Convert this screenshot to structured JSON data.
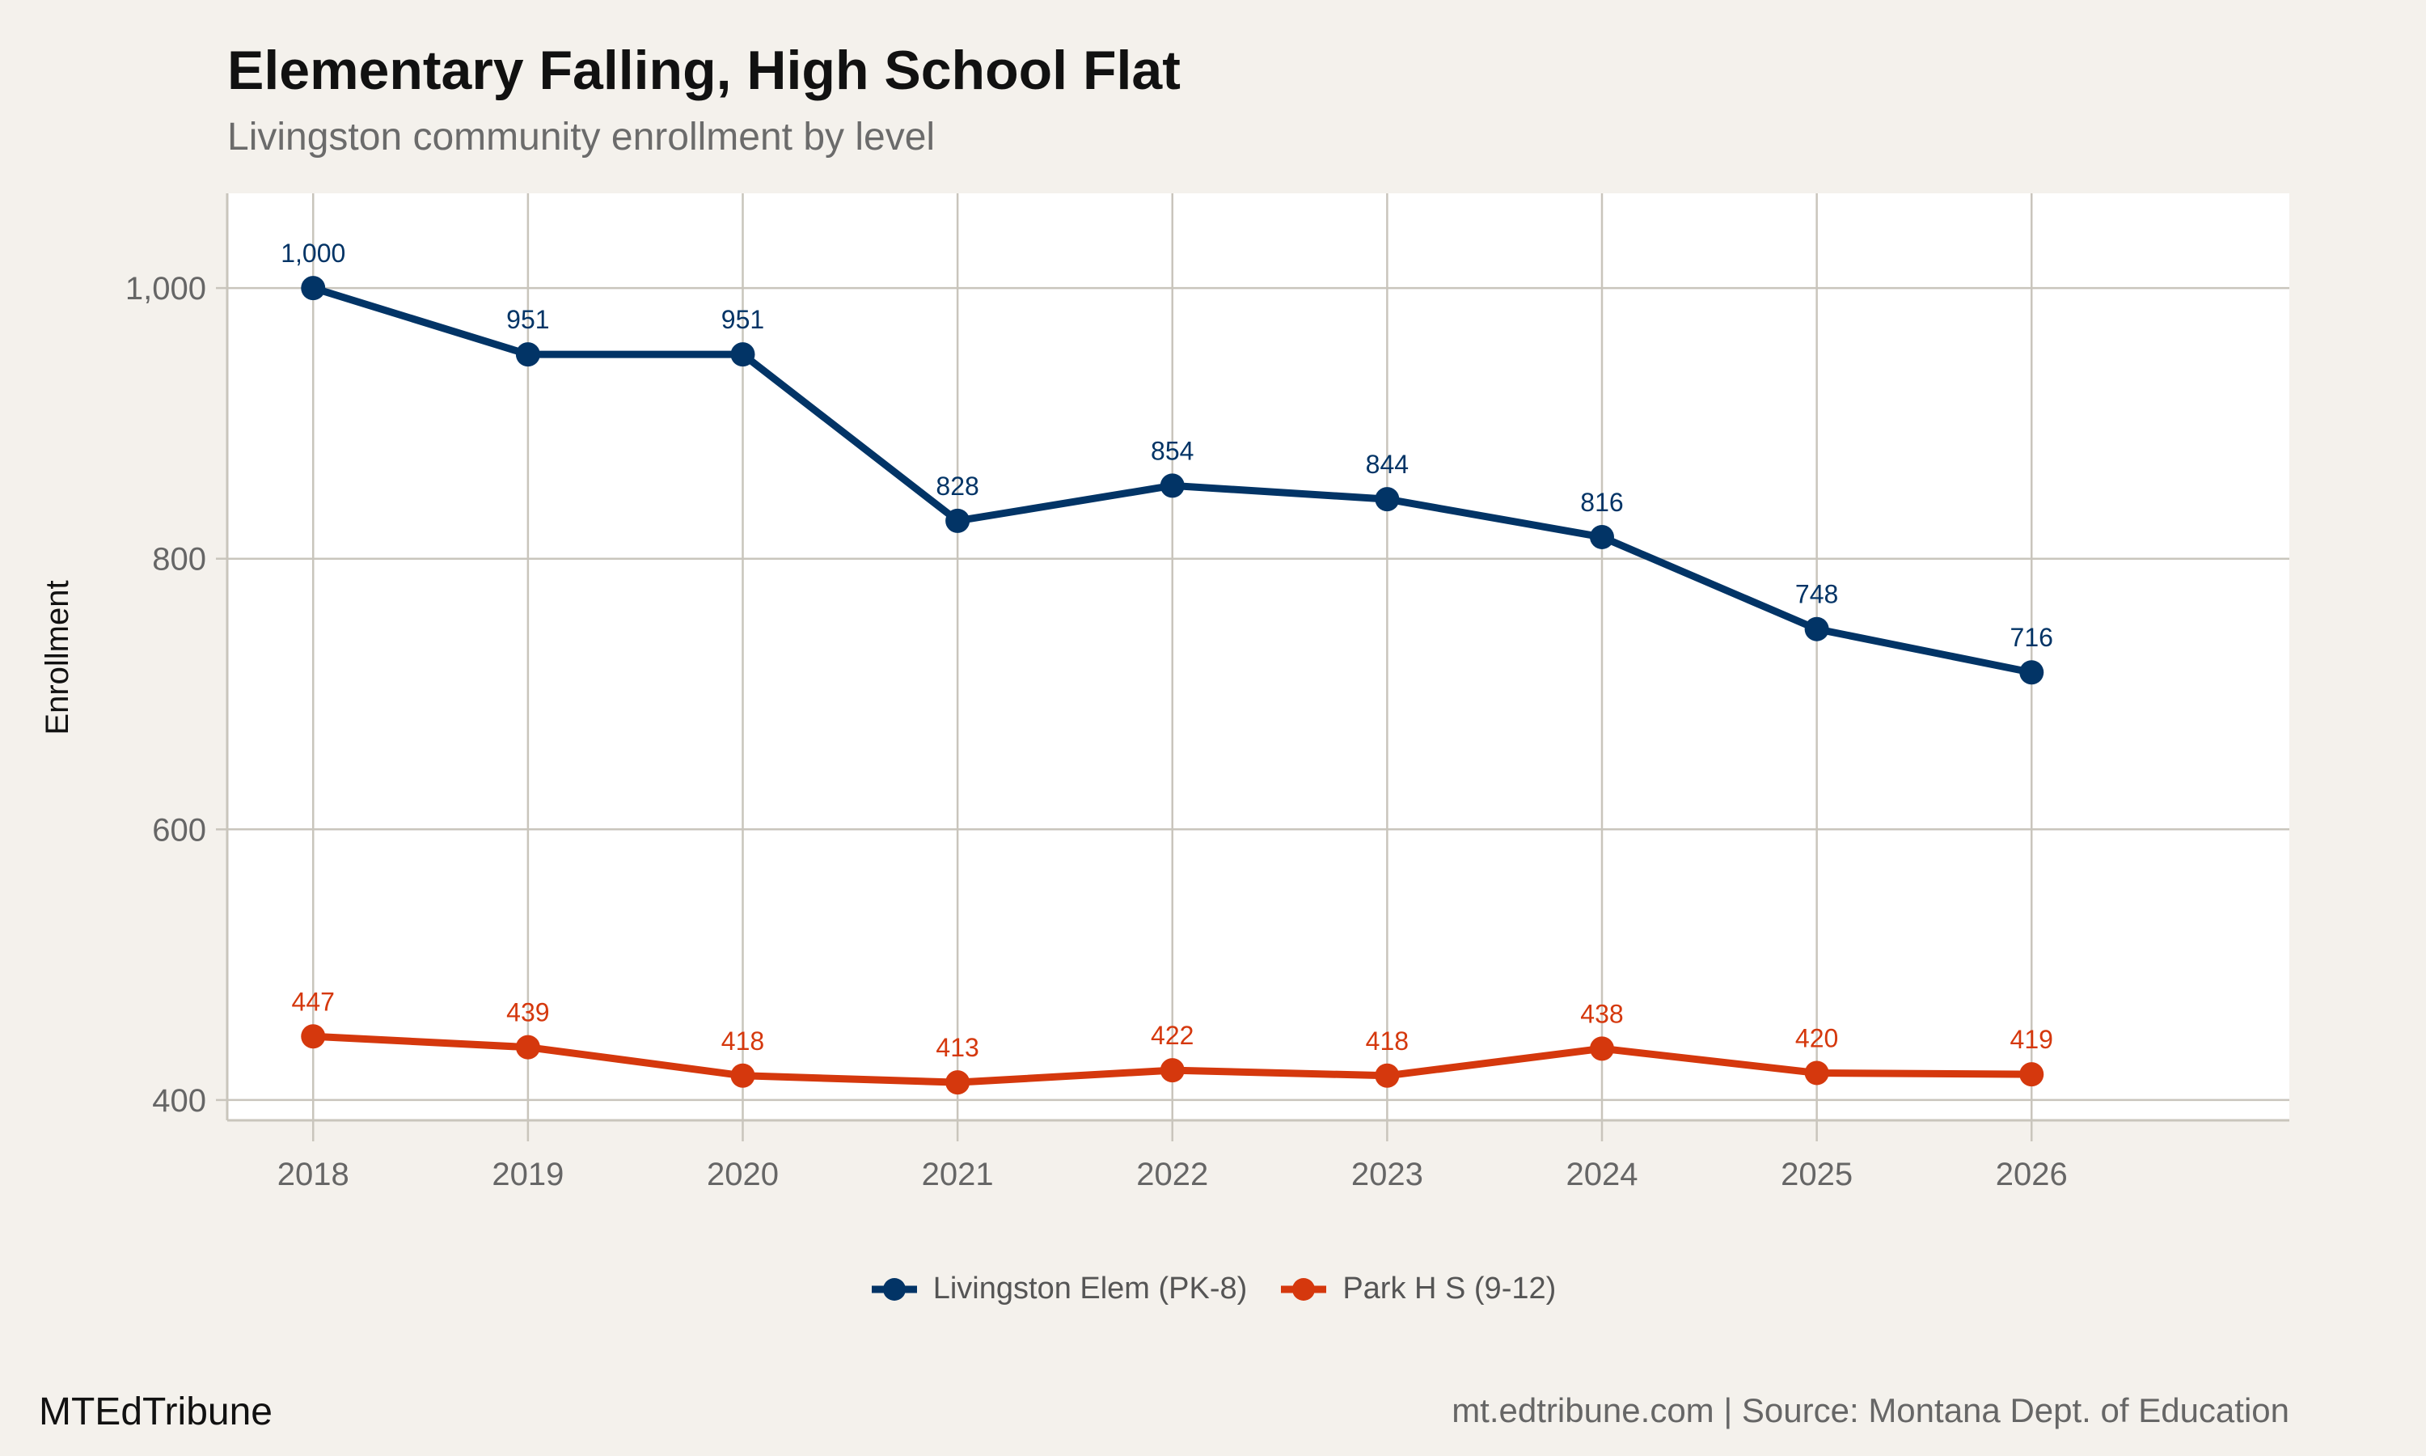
{
  "chart_data": {
    "type": "line",
    "title": "Elementary Falling, High School Flat",
    "subtitle": "Livingston community enrollment by level",
    "xlabel": "",
    "ylabel": "Enrollment",
    "x": [
      2018,
      2019,
      2020,
      2021,
      2022,
      2023,
      2024,
      2025,
      2026
    ],
    "x_tick_labels": [
      "2018",
      "2019",
      "2020",
      "2021",
      "2022",
      "2023",
      "2024",
      "2025",
      "2026"
    ],
    "y_ticks": [
      400,
      600,
      800,
      1000
    ],
    "y_tick_labels": [
      "400",
      "600",
      "800",
      "1,000"
    ],
    "ylim": [
      385,
      1070
    ],
    "xlim": [
      2017.6,
      2027.2
    ],
    "grid": true,
    "legend_position": "bottom",
    "series": [
      {
        "name": "Livingston Elem (PK-8)",
        "color": "#023466",
        "values": [
          1000,
          951,
          951,
          828,
          854,
          844,
          816,
          748,
          716
        ],
        "labels": [
          "1,000",
          "951",
          "951",
          "828",
          "854",
          "844",
          "816",
          "748",
          "716"
        ]
      },
      {
        "name": "Park H S (9-12)",
        "color": "#d5380d",
        "values": [
          447,
          439,
          418,
          413,
          422,
          418,
          438,
          420,
          419
        ],
        "labels": [
          "447",
          "439",
          "418",
          "413",
          "422",
          "418",
          "438",
          "420",
          "419"
        ]
      }
    ]
  },
  "footer": {
    "brand": "MTEdTribune",
    "source": "mt.edtribune.com | Source: Montana Dept. of Education"
  },
  "colors": {
    "background": "#f4f1ec",
    "panel": "#ffffff",
    "grid": "#c9c5bc"
  }
}
